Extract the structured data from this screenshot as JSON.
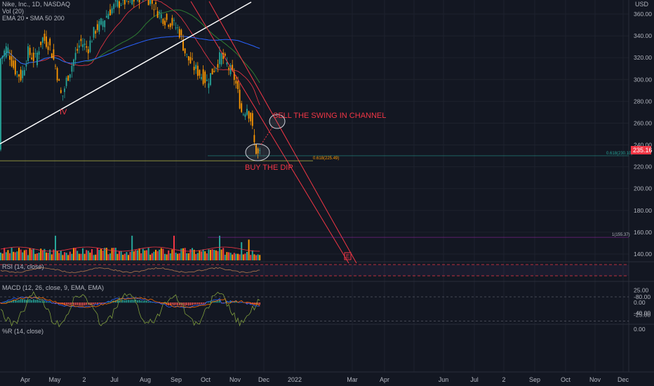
{
  "header": {
    "symbol_line": "Nike, Inc., 1D, NASDAQ",
    "vol_line": "Vol (20)",
    "ma_line": "EMA 20 • SMA 50 200"
  },
  "colors": {
    "background": "#131722",
    "up": "#26a69a",
    "down": "#ff9800",
    "accent_red": "#f23645",
    "trendline": "#ffffff",
    "grid": "#1e222d",
    "text": "#b2b5be",
    "price_badge": "#f23645"
  },
  "chart_data": [
    {
      "type": "candlestick",
      "name": "price",
      "yunit": "USD",
      "ylim": [
        130,
        370
      ],
      "yticks": [
        140,
        160,
        180,
        200,
        220,
        240,
        260,
        280,
        300,
        320,
        340,
        360
      ],
      "x_tick_labels": [
        "Apr",
        "May",
        "2",
        "Jul",
        "Aug",
        "Sep",
        "Oct",
        "Nov",
        "Dec",
        "2022",
        "Mar",
        "Apr",
        "Jun",
        "Jul",
        "2",
        "Sep",
        "Oct",
        "Nov",
        "Dec"
      ],
      "last_price": "235.16",
      "fib_levels": [
        {
          "label": "0.618(225.49)",
          "value": 225.49
        },
        {
          "label": "0.618(230.10)",
          "value": 230.1
        },
        {
          "label": "1(155.37)",
          "value": 155.37
        }
      ],
      "annotations": [
        {
          "text": "IV"
        },
        {
          "text": "SELL THE SWING IN CHANNEL"
        },
        {
          "text": "BUY THE DIP"
        },
        {
          "text": "E"
        }
      ],
      "close_path": [
        [
          0,
          318
        ],
        [
          10,
          330
        ],
        [
          20,
          310
        ],
        [
          30,
          302
        ],
        [
          40,
          325
        ],
        [
          50,
          318
        ],
        [
          60,
          338
        ],
        [
          70,
          332
        ],
        [
          80,
          310
        ],
        [
          88,
          282
        ],
        [
          95,
          300
        ],
        [
          105,
          318
        ],
        [
          115,
          335
        ],
        [
          125,
          328
        ],
        [
          135,
          345
        ],
        [
          145,
          352
        ],
        [
          155,
          362
        ],
        [
          165,
          368
        ],
        [
          175,
          372
        ],
        [
          185,
          370
        ],
        [
          195,
          375
        ],
        [
          205,
          378
        ],
        [
          215,
          372
        ],
        [
          225,
          362
        ],
        [
          235,
          355
        ],
        [
          245,
          352
        ],
        [
          255,
          345
        ],
        [
          265,
          322
        ],
        [
          275,
          312
        ],
        [
          285,
          305
        ],
        [
          295,
          298
        ],
        [
          305,
          310
        ],
        [
          315,
          322
        ],
        [
          325,
          312
        ],
        [
          335,
          300
        ],
        [
          345,
          268
        ],
        [
          352,
          275
        ],
        [
          358,
          262
        ],
        [
          363,
          238
        ],
        [
          368,
          230
        ],
        [
          372,
          235
        ]
      ]
    },
    {
      "type": "bar",
      "name": "volume",
      "ylim": [
        0,
        100
      ]
    },
    {
      "type": "line",
      "name": "RSI (14, close)",
      "label": "RSI (14, close)"
    },
    {
      "type": "histogram",
      "name": "MACD (12, 26, close, 9, EMA, EMA)",
      "label": "MACD (12, 26, close, 9, EMA, EMA)",
      "ylim": [
        -30,
        30
      ],
      "yticks": [
        "25.00",
        "0.00",
        "-25.00"
      ],
      "ytick_values": [
        25,
        0,
        -25
      ]
    },
    {
      "type": "line",
      "name": "%R (14, close)",
      "label": "%R (14, close)",
      "ylim": [
        -100,
        0
      ],
      "yticks": [
        "0.00",
        "-40.00",
        "-80.00"
      ],
      "ytick_values": [
        0,
        -40,
        -80
      ]
    }
  ]
}
